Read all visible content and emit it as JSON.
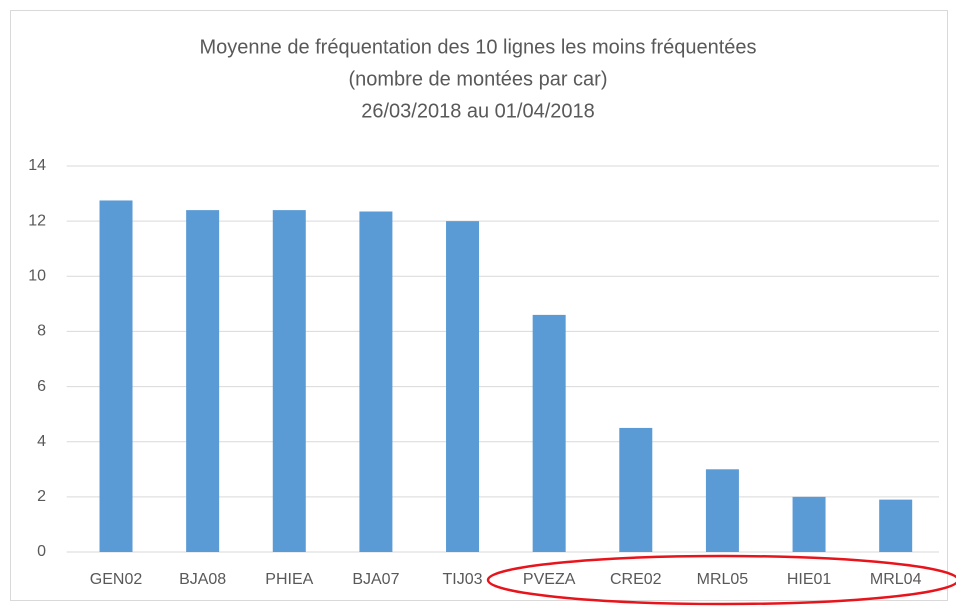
{
  "chart_data": {
    "type": "bar",
    "title": [
      "Moyenne de fréquentation des 10 lignes les moins fréquentées",
      "(nombre de montées par car)",
      "26/03/2018 au 01/04/2018"
    ],
    "categories": [
      "GEN02",
      "BJA08",
      "PHIEA",
      "BJA07",
      "TIJ03",
      "PVEZA",
      "CRE02",
      "MRL05",
      "HIE01",
      "MRL04"
    ],
    "values": [
      12.75,
      12.4,
      12.4,
      12.35,
      12.0,
      8.6,
      4.5,
      3.0,
      2.0,
      1.9
    ],
    "color": "#5b9bd5",
    "ylim": [
      0,
      14
    ],
    "yticks": [
      0,
      2,
      4,
      6,
      8,
      10,
      12,
      14
    ],
    "grid": true
  }
}
